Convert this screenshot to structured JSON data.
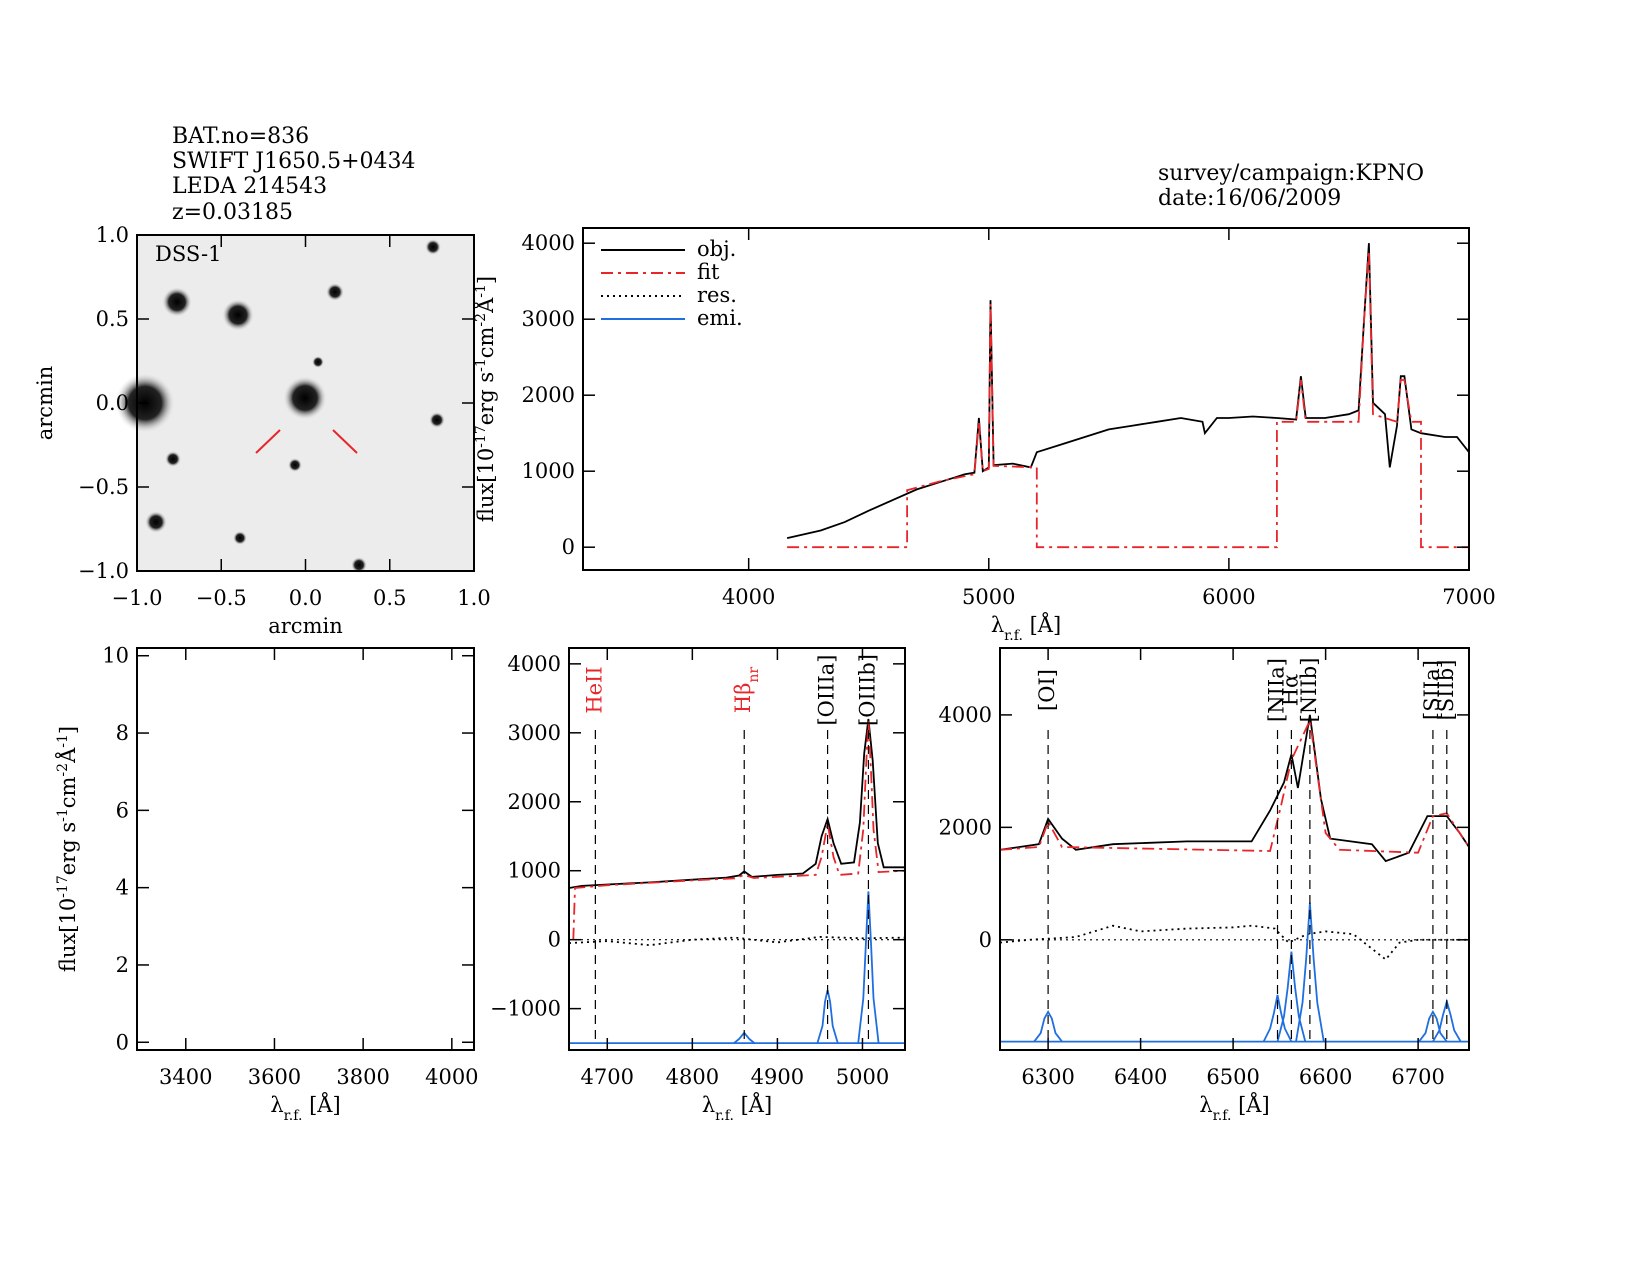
{
  "header": {
    "object_info": [
      "BAT.no=836",
      "SWIFT J1650.5+0434",
      "LEDA 214543",
      "z=0.03185"
    ],
    "observation": [
      "survey/campaign:KPNO",
      "date:16/06/2009"
    ]
  },
  "chart_data": [
    {
      "type": "image",
      "label": "DSS-1",
      "xlim": [
        -1,
        1
      ],
      "ylim": [
        -1,
        1
      ],
      "xticks": [
        {
          "value": -1,
          "label": "−1.0"
        },
        {
          "value": -0.5,
          "label": "−0.5"
        },
        {
          "value": 0,
          "label": "0.0"
        },
        0.5,
        {
          "value": 1,
          "label": "1.0"
        }
      ],
      "yticks": [
        {
          "value": -1,
          "label": "−1.0"
        },
        {
          "value": -0.5,
          "label": "−0.5"
        },
        {
          "value": 0,
          "label": "0.0"
        },
        0.5,
        {
          "value": 1,
          "label": "1.0"
        }
      ],
      "xlabel": [
        {
          "text": "arcmin"
        }
      ],
      "ylabel": [
        {
          "text": "arcmin"
        }
      ]
    },
    {
      "type": "line",
      "xlim": [
        3310,
        7000
      ],
      "ylim": [
        -300,
        4200
      ],
      "xticks": [
        4000,
        5000,
        6000,
        7000
      ],
      "yticks": [
        0,
        1000,
        2000,
        3000,
        4000
      ],
      "xlabel": [
        {
          "text": "λ"
        },
        {
          "text": "r.f.",
          "shift": "sub"
        },
        {
          "text": " [Å]"
        }
      ],
      "ylabel": [
        {
          "text": "flux[10"
        },
        {
          "text": "-17",
          "shift": "super"
        },
        {
          "text": "erg s"
        },
        {
          "text": "-1",
          "shift": "super"
        },
        {
          "text": "cm"
        },
        {
          "text": "-2",
          "shift": "super"
        },
        {
          "text": "Å"
        },
        {
          "text": "-1",
          "shift": "super"
        },
        {
          "text": "]"
        }
      ],
      "legend": "upper left",
      "series": [
        {
          "name": "obj.",
          "color": "#000000",
          "dash": "solid",
          "x": [
            4160,
            4300,
            4400,
            4500,
            4600,
            4700,
            4800,
            4860,
            4900,
            4940,
            4959,
            4975,
            5000,
            5007,
            5020,
            5100,
            5175,
            5200,
            5300,
            5400,
            5500,
            5600,
            5700,
            5800,
            5890,
            5900,
            5950,
            6000,
            6100,
            6200,
            6280,
            6300,
            6320,
            6400,
            6500,
            6540,
            6563,
            6583,
            6600,
            6650,
            6670,
            6700,
            6716,
            6731,
            6760,
            6800,
            6900,
            6950,
            7000
          ],
          "values": [
            120,
            220,
            330,
            480,
            620,
            760,
            860,
            920,
            960,
            980,
            1700,
            1000,
            1050,
            3250,
            1080,
            1100,
            1050,
            1250,
            1350,
            1450,
            1550,
            1600,
            1650,
            1700,
            1650,
            1500,
            1700,
            1700,
            1720,
            1700,
            1680,
            2250,
            1700,
            1700,
            1750,
            1800,
            3000,
            4000,
            1900,
            1750,
            1050,
            1600,
            2250,
            2250,
            1550,
            1500,
            1450,
            1450,
            1250
          ]
        },
        {
          "name": "fit",
          "color": "#e8262a",
          "dash": "dashdot",
          "x": [
            4160,
            4660,
            4660,
            4800,
            4940,
            4959,
            4975,
            5000,
            5007,
            5020,
            5200,
            5200,
            6200,
            6200,
            6280,
            6300,
            6320,
            6540,
            6563,
            6583,
            6600,
            6700,
            6716,
            6731,
            6760,
            6800,
            6800,
            7000
          ],
          "values": [
            0,
            0,
            750,
            870,
            960,
            1650,
            1000,
            1030,
            3200,
            1070,
            1050,
            0,
            0,
            1650,
            1650,
            2200,
            1650,
            1650,
            3000,
            3900,
            1750,
            1650,
            2200,
            2200,
            1650,
            1650,
            0,
            0
          ]
        },
        {
          "name": "res.",
          "color": "#000000",
          "dash": "dot"
        },
        {
          "name": "emi.",
          "color": "#1f6fe0",
          "dash": "solid"
        }
      ]
    },
    {
      "type": "line",
      "xlim": [
        3290,
        4050
      ],
      "ylim": [
        -0.2,
        10.2
      ],
      "xticks": [
        3400,
        3600,
        3800,
        4000
      ],
      "yticks": [
        0,
        2,
        4,
        6,
        8,
        10
      ],
      "xlabel": [
        {
          "text": "λ"
        },
        {
          "text": "r.f.",
          "shift": "sub"
        },
        {
          "text": " [Å]"
        }
      ],
      "ylabel": [
        {
          "text": "flux[10"
        },
        {
          "text": "-17",
          "shift": "super"
        },
        {
          "text": "erg s"
        },
        {
          "text": "-1",
          "shift": "super"
        },
        {
          "text": "cm"
        },
        {
          "text": "-2",
          "shift": "super"
        },
        {
          "text": "Å"
        },
        {
          "text": "-1",
          "shift": "super"
        },
        {
          "text": "]"
        }
      ]
    },
    {
      "type": "line",
      "xlim": [
        4655,
        5050
      ],
      "ylim": [
        -1600,
        4230
      ],
      "xticks": [
        4700,
        4800,
        4900,
        5000
      ],
      "yticks": [
        {
          "value": -1000,
          "label": "−1000"
        },
        0,
        1000,
        2000,
        3000,
        4000
      ],
      "xlabel": [
        {
          "text": "λ"
        },
        {
          "text": "r.f.",
          "shift": "sub"
        },
        {
          "text": " [Å]"
        }
      ],
      "zero_line": 0,
      "markers": [
        {
          "label": [
            {
              "text": "HeII"
            }
          ],
          "x": 4686,
          "color": "#e8262a"
        },
        {
          "label": [
            {
              "text": "Hβ"
            },
            {
              "text": "nr",
              "shift": "sub"
            }
          ],
          "x": 4861,
          "color": "#e8262a"
        },
        {
          "label": [
            {
              "text": "[OIIIa]"
            }
          ],
          "x": 4959,
          "color": "#000000"
        },
        {
          "label": [
            {
              "text": "[OIIIb]"
            }
          ],
          "x": 5007,
          "color": "#000000"
        }
      ],
      "series": [
        {
          "name": "obj.",
          "color": "#000000",
          "dash": "solid",
          "x": [
            4655,
            4670,
            4700,
            4750,
            4800,
            4840,
            4855,
            4861,
            4870,
            4900,
            4930,
            4945,
            4952,
            4959,
            4966,
            4975,
            4990,
            4997,
            5002,
            5007,
            5012,
            5018,
            5025,
            5050
          ],
          "values": [
            750,
            780,
            800,
            830,
            870,
            900,
            930,
            990,
            910,
            940,
            960,
            1100,
            1500,
            1750,
            1400,
            1100,
            1120,
            1700,
            2700,
            3200,
            2600,
            1400,
            1050,
            1050
          ]
        },
        {
          "name": "fit",
          "color": "#e8262a",
          "dash": "dashdot",
          "x": [
            4660,
            4662,
            4700,
            4800,
            4850,
            4861,
            4872,
            4945,
            4952,
            4959,
            4966,
            4973,
            4995,
            5001,
            5004,
            5007,
            5010,
            5013,
            5019,
            5050
          ],
          "values": [
            0,
            750,
            790,
            860,
            890,
            940,
            895,
            940,
            1200,
            1680,
            1200,
            940,
            960,
            1600,
            2450,
            3200,
            2450,
            1600,
            980,
            1000
          ]
        },
        {
          "name": "res.",
          "color": "#000000",
          "dash": "dot",
          "x": [
            4655,
            4700,
            4750,
            4800,
            4850,
            4900,
            4950,
            5000,
            5050
          ],
          "values": [
            -50,
            -20,
            -80,
            0,
            30,
            -40,
            40,
            20,
            30
          ]
        },
        {
          "name": "emi.",
          "color": "#1f6fe0",
          "dash": "solid",
          "components": [
            {
              "x": [
                4655,
                5050
              ],
              "values": [
                -1500,
                -1500
              ]
            },
            {
              "x": [
                4849,
                4855,
                4861,
                4867,
                4873
              ],
              "values": [
                -1500,
                -1440,
                -1350,
                -1440,
                -1500
              ]
            },
            {
              "x": [
                4947,
                4953,
                4956,
                4959,
                4962,
                4965,
                4971
              ],
              "values": [
                -1500,
                -1250,
                -900,
                -730,
                -900,
                -1250,
                -1500
              ]
            },
            {
              "x": [
                4995,
                5001,
                5004,
                5007,
                5010,
                5013,
                5019
              ],
              "values": [
                -1500,
                -850,
                -50,
                700,
                -50,
                -850,
                -1500
              ]
            }
          ]
        }
      ]
    },
    {
      "type": "line",
      "xlim": [
        6248,
        6755
      ],
      "ylim": [
        -1960,
        5190
      ],
      "xticks": [
        6300,
        6400,
        6500,
        6600,
        6700
      ],
      "yticks": [
        0,
        2000,
        4000
      ],
      "xlabel": [
        {
          "text": "λ"
        },
        {
          "text": "r.f.",
          "shift": "sub"
        },
        {
          "text": " [Å]"
        }
      ],
      "zero_line": 0,
      "markers": [
        {
          "label": [
            {
              "text": "[OI]"
            }
          ],
          "x": 6300,
          "color": "#000000"
        },
        {
          "label": [
            {
              "text": "[NIIa]"
            }
          ],
          "x": 6548,
          "color": "#000000"
        },
        {
          "label": [
            {
              "text": "Hα"
            }
          ],
          "x": 6563,
          "color": "#000000"
        },
        {
          "label": [
            {
              "text": "[NIIb]"
            }
          ],
          "x": 6583,
          "color": "#000000"
        },
        {
          "label": [
            {
              "text": "[SIIa]"
            }
          ],
          "x": 6716,
          "color": "#000000"
        },
        {
          "label": [
            {
              "text": "[SIIb]"
            }
          ],
          "x": 6731,
          "color": "#000000"
        }
      ],
      "series": [
        {
          "name": "obj.",
          "color": "#000000",
          "dash": "solid",
          "x": [
            6248,
            6290,
            6300,
            6315,
            6330,
            6370,
            6450,
            6520,
            6540,
            6555,
            6563,
            6570,
            6583,
            6595,
            6605,
            6650,
            6665,
            6690,
            6710,
            6731,
            6745,
            6755
          ],
          "values": [
            1600,
            1700,
            2150,
            1800,
            1600,
            1700,
            1750,
            1750,
            2300,
            2800,
            3300,
            2700,
            4000,
            2500,
            1800,
            1700,
            1400,
            1550,
            2200,
            2200,
            1900,
            1650
          ]
        },
        {
          "name": "fit",
          "color": "#e8262a",
          "dash": "dashdot",
          "x": [
            6248,
            6290,
            6300,
            6315,
            6540,
            6552,
            6563,
            6583,
            6600,
            6615,
            6700,
            6716,
            6731,
            6745,
            6755
          ],
          "values": [
            1600,
            1650,
            2100,
            1650,
            1580,
            2400,
            3200,
            3900,
            1900,
            1600,
            1550,
            2200,
            2250,
            1900,
            1650
          ]
        },
        {
          "name": "res.",
          "color": "#000000",
          "dash": "dot",
          "x": [
            6248,
            6280,
            6300,
            6330,
            6370,
            6400,
            6450,
            6500,
            6520,
            6545,
            6560,
            6580,
            6600,
            6630,
            6665,
            6680,
            6700,
            6730,
            6755
          ],
          "values": [
            -50,
            0,
            20,
            50,
            250,
            150,
            200,
            220,
            250,
            200,
            -50,
            100,
            150,
            100,
            -350,
            -50,
            0,
            0,
            0
          ]
        },
        {
          "name": "emi.",
          "color": "#1f6fe0",
          "dash": "solid",
          "components": [
            {
              "x": [
                6248,
                6755
              ],
              "values": [
                -1810,
                -1810
              ]
            },
            {
              "x": [
                6285,
                6292,
                6296,
                6300,
                6304,
                6308,
                6315
              ],
              "values": [
                -1810,
                -1660,
                -1400,
                -1280,
                -1400,
                -1660,
                -1810
              ]
            },
            {
              "x": [
                6533,
                6540,
                6544,
                6548,
                6552,
                6556,
                6563
              ],
              "values": [
                -1810,
                -1580,
                -1310,
                -980,
                -1310,
                -1580,
                -1810
              ]
            },
            {
              "x": [
                6548,
                6555,
                6559,
                6563,
                6567,
                6571,
                6578
              ],
              "values": [
                -1810,
                -1360,
                -850,
                -210,
                -850,
                -1360,
                -1810
              ]
            },
            {
              "x": [
                6568,
                6575,
                6579,
                6583,
                6587,
                6591,
                6598
              ],
              "values": [
                -1810,
                -1120,
                -330,
                660,
                -330,
                -1120,
                -1810
              ]
            },
            {
              "x": [
                6701,
                6708,
                6712,
                6716,
                6720,
                6724,
                6731
              ],
              "values": [
                -1810,
                -1660,
                -1400,
                -1280,
                -1400,
                -1660,
                -1810
              ]
            },
            {
              "x": [
                6716,
                6723,
                6727,
                6731,
                6735,
                6739,
                6746
              ],
              "values": [
                -1810,
                -1610,
                -1330,
                -1100,
                -1330,
                -1610,
                -1810
              ]
            }
          ]
        }
      ]
    }
  ]
}
